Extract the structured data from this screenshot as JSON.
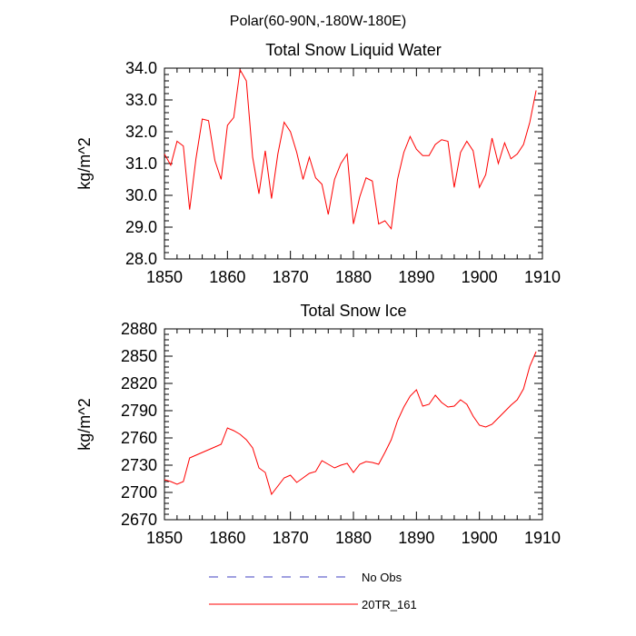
{
  "figure_title": "Polar(60-90N,-180W-180E)",
  "colors": {
    "model_line": "#ff0000",
    "obs_line": "#4040c0",
    "axis": "#000000"
  },
  "legend": {
    "entries": [
      {
        "label": "No Obs",
        "style": "dashed",
        "color": "#4040c0"
      },
      {
        "label": "20TR_161",
        "style": "solid",
        "color": "#ff0000"
      }
    ]
  },
  "chart_data": [
    {
      "type": "line",
      "title": "Total Snow Liquid Water",
      "xlabel": "",
      "ylabel": "kg/m^2",
      "xlim": [
        1850,
        1910
      ],
      "ylim": [
        28.0,
        34.0
      ],
      "xticks": [
        1850,
        1860,
        1870,
        1880,
        1890,
        1900,
        1910
      ],
      "xtick_labels": [
        "1850",
        "1860",
        "1870",
        "1880",
        "1890",
        "1900",
        "1910"
      ],
      "yticks": [
        28,
        29,
        30,
        31,
        32,
        33,
        34
      ],
      "ytick_labels": [
        "28.0",
        "29.0",
        "30.0",
        "31.0",
        "32.0",
        "33.0",
        "34.0"
      ],
      "grid": false,
      "series": [
        {
          "name": "20TR_161",
          "x": [
            1850,
            1851,
            1852,
            1853,
            1854,
            1855,
            1856,
            1857,
            1858,
            1859,
            1860,
            1861,
            1862,
            1863,
            1864,
            1865,
            1866,
            1867,
            1868,
            1869,
            1870,
            1871,
            1872,
            1873,
            1874,
            1875,
            1876,
            1877,
            1878,
            1879,
            1880,
            1881,
            1882,
            1883,
            1884,
            1885,
            1886,
            1887,
            1888,
            1889,
            1890,
            1891,
            1892,
            1893,
            1894,
            1895,
            1896,
            1897,
            1898,
            1899,
            1900,
            1901,
            1902,
            1903,
            1904,
            1905,
            1906,
            1907,
            1908,
            1909
          ],
          "values": [
            31.3,
            30.95,
            31.7,
            31.55,
            29.55,
            31.15,
            32.4,
            32.35,
            31.1,
            30.5,
            32.2,
            32.45,
            33.95,
            33.6,
            31.2,
            30.05,
            31.4,
            29.9,
            31.3,
            32.3,
            32.0,
            31.35,
            30.5,
            31.2,
            30.55,
            30.35,
            29.4,
            30.5,
            31.0,
            31.3,
            29.1,
            29.95,
            30.55,
            30.45,
            29.1,
            29.2,
            28.95,
            30.5,
            31.35,
            31.85,
            31.45,
            31.25,
            31.25,
            31.6,
            31.75,
            31.7,
            30.25,
            31.35,
            31.7,
            31.4,
            30.25,
            30.65,
            31.8,
            31.0,
            31.65,
            31.15,
            31.3,
            31.6,
            32.3,
            33.3
          ]
        }
      ]
    },
    {
      "type": "line",
      "title": "Total Snow Ice",
      "xlabel": "",
      "ylabel": "kg/m^2",
      "xlim": [
        1850,
        1910
      ],
      "ylim": [
        2670,
        2880
      ],
      "xticks": [
        1850,
        1860,
        1870,
        1880,
        1890,
        1900,
        1910
      ],
      "xtick_labels": [
        "1850",
        "1860",
        "1870",
        "1880",
        "1890",
        "1900",
        "1910"
      ],
      "yticks": [
        2670,
        2700,
        2730,
        2760,
        2790,
        2820,
        2850,
        2880
      ],
      "ytick_labels": [
        "2670",
        "2700",
        "2730",
        "2760",
        "2790",
        "2820",
        "2850",
        "2880"
      ],
      "grid": false,
      "series": [
        {
          "name": "20TR_161",
          "x": [
            1850,
            1851,
            1852,
            1853,
            1854,
            1855,
            1856,
            1857,
            1858,
            1859,
            1860,
            1861,
            1862,
            1863,
            1864,
            1865,
            1866,
            1867,
            1868,
            1869,
            1870,
            1871,
            1872,
            1873,
            1874,
            1875,
            1876,
            1877,
            1878,
            1879,
            1880,
            1881,
            1882,
            1883,
            1884,
            1885,
            1886,
            1887,
            1888,
            1889,
            1890,
            1891,
            1892,
            1893,
            1894,
            1895,
            1896,
            1897,
            1898,
            1899,
            1900,
            1901,
            1902,
            1903,
            1904,
            1905,
            1906,
            1907,
            1908,
            1909
          ],
          "values": [
            2714,
            2712,
            2709,
            2712,
            2738,
            2741,
            2744,
            2747,
            2750,
            2753,
            2771,
            2768,
            2764,
            2758,
            2749,
            2727,
            2722,
            2698,
            2707,
            2716,
            2719,
            2711,
            2716,
            2721,
            2723,
            2735,
            2731,
            2727,
            2730,
            2732,
            2722,
            2731,
            2734,
            2733,
            2731,
            2744,
            2758,
            2779,
            2794,
            2806,
            2813,
            2795,
            2797,
            2807,
            2799,
            2794,
            2795,
            2802,
            2797,
            2784,
            2774,
            2772,
            2775,
            2782,
            2789,
            2796,
            2802,
            2814,
            2839,
            2855
          ]
        }
      ]
    }
  ]
}
